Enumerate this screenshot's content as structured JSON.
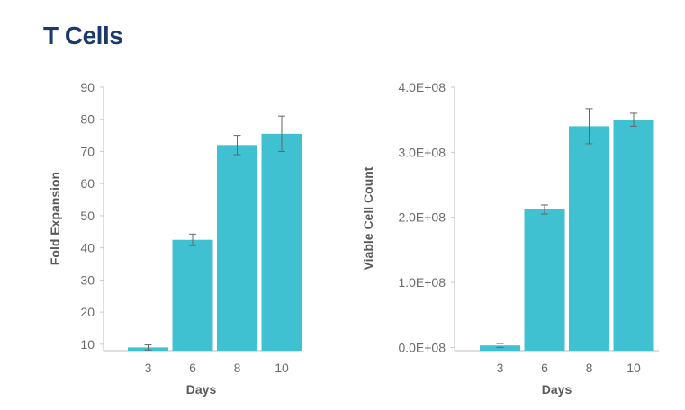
{
  "page": {
    "title": "T Cells"
  },
  "colors": {
    "bar": "#40c1d2",
    "axis": "#c9c9c9",
    "errorbar": "#666666",
    "title": "#1b3a6b"
  },
  "chart_data": [
    {
      "type": "bar",
      "categories": [
        "3",
        "6",
        "8",
        "10"
      ],
      "values": [
        9,
        42.5,
        72,
        75.5
      ],
      "errors": [
        0.8,
        1.8,
        3.0,
        5.5
      ],
      "xlabel": "Days",
      "ylabel": "Fold Expansion",
      "ylim": [
        8,
        90
      ],
      "yticks": [
        10,
        20,
        30,
        40,
        50,
        60,
        70,
        80,
        90
      ],
      "ytick_labels": [
        "10",
        "20",
        "30",
        "40",
        "50",
        "60",
        "70",
        "80",
        "90"
      ],
      "grid": false
    },
    {
      "type": "bar",
      "categories": [
        "3",
        "6",
        "8",
        "10"
      ],
      "values": [
        3000000,
        212000000,
        340000000,
        350000000
      ],
      "errors": [
        3000000,
        7000000,
        27000000,
        10000000
      ],
      "xlabel": "Days",
      "ylabel": "Viable Cell Count",
      "ylim": [
        -5000000,
        400000000
      ],
      "yticks": [
        0,
        100000000,
        200000000,
        300000000,
        400000000
      ],
      "ytick_labels": [
        "0.0E+08",
        "1.0E+08",
        "2.0E+08",
        "3.0E+08",
        "4.0E+08"
      ],
      "grid": false
    }
  ]
}
